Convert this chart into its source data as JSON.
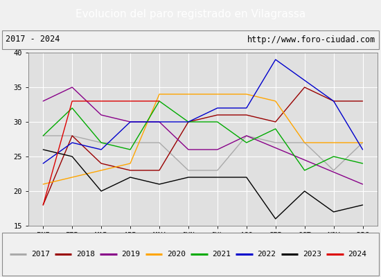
{
  "title": "Evolucion del paro registrado en Vilagrassa",
  "subtitle_left": "2017 - 2024",
  "subtitle_right": "http://www.foro-ciudad.com",
  "months": [
    "ENE",
    "FEB",
    "MAR",
    "ABR",
    "MAY",
    "JUN",
    "JUL",
    "AGO",
    "SEP",
    "OCT",
    "NOV",
    "DIC"
  ],
  "ylim": [
    15,
    40
  ],
  "yticks": [
    15,
    20,
    25,
    30,
    35,
    40
  ],
  "series": {
    "2017": {
      "color": "#aaaaaa",
      "values": [
        28,
        28,
        27,
        27,
        27,
        23,
        23,
        28,
        27,
        27,
        23,
        27
      ]
    },
    "2018": {
      "color": "#990000",
      "values": [
        18,
        28,
        24,
        23,
        23,
        30,
        31,
        31,
        30,
        35,
        33,
        33
      ]
    },
    "2019": {
      "color": "#880088",
      "values": [
        33,
        35,
        31,
        30,
        30,
        26,
        26,
        28,
        null,
        null,
        null,
        21
      ]
    },
    "2020": {
      "color": "#ffa500",
      "values": [
        21,
        22,
        23,
        24,
        34,
        34,
        34,
        34,
        33,
        27,
        27,
        27
      ]
    },
    "2021": {
      "color": "#00aa00",
      "values": [
        28,
        32,
        27,
        26,
        33,
        30,
        30,
        27,
        29,
        23,
        25,
        24
      ]
    },
    "2022": {
      "color": "#0000cc",
      "values": [
        24,
        27,
        26,
        30,
        30,
        30,
        32,
        32,
        39,
        36,
        33,
        26
      ]
    },
    "2023": {
      "color": "#000000",
      "values": [
        26,
        25,
        20,
        22,
        21,
        22,
        22,
        22,
        16,
        20,
        17,
        18
      ]
    },
    "2024": {
      "color": "#dd0000",
      "values": [
        18,
        33,
        33,
        33,
        33,
        null,
        null,
        null,
        null,
        null,
        null,
        null
      ]
    }
  },
  "title_bg": "#4e7ab5",
  "title_color": "#ffffff",
  "outer_bg": "#f0f0f0",
  "plot_bg": "#e0e0e0",
  "grid_color": "#ffffff",
  "legend_years": [
    "2017",
    "2018",
    "2019",
    "2020",
    "2021",
    "2022",
    "2023",
    "2024"
  ],
  "title_fontsize": 11,
  "tick_fontsize": 7.5
}
